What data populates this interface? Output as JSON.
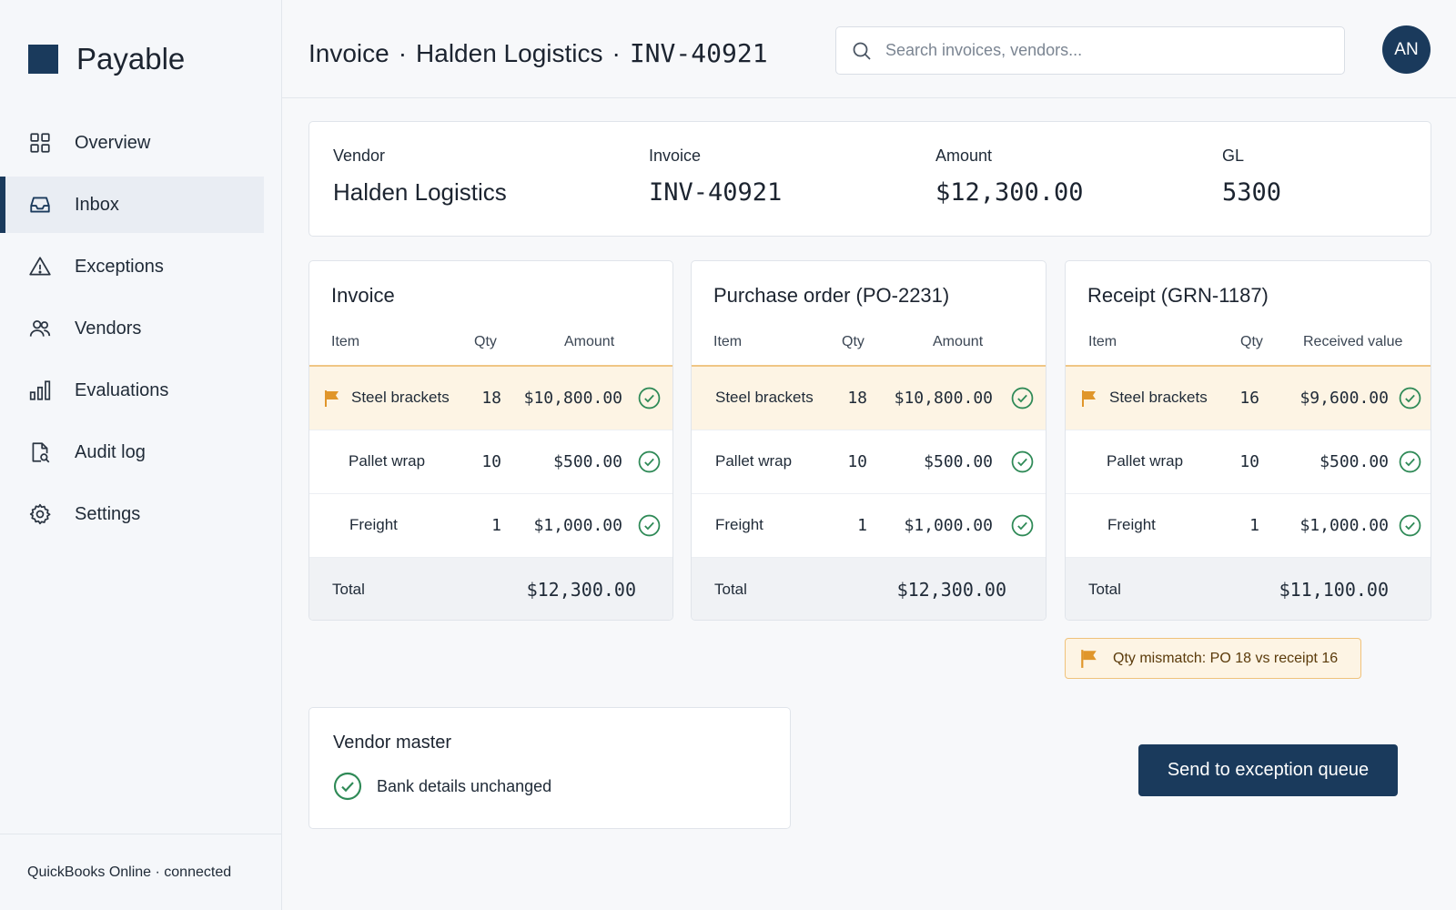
{
  "app": {
    "name": "Payable",
    "footer_status": "QuickBooks Online · connected"
  },
  "sidebar": {
    "items": [
      {
        "label": "Overview",
        "icon": "grid-icon"
      },
      {
        "label": "Inbox",
        "icon": "inbox-icon",
        "active": true
      },
      {
        "label": "Exceptions",
        "icon": "warning-icon"
      },
      {
        "label": "Vendors",
        "icon": "users-icon"
      },
      {
        "label": "Evaluations",
        "icon": "bar-chart-icon"
      },
      {
        "label": "Audit log",
        "icon": "file-search-icon"
      },
      {
        "label": "Settings",
        "icon": "gear-icon"
      }
    ]
  },
  "header": {
    "title_prefix": "Invoice",
    "separator": "·",
    "vendor": "Halden Logistics",
    "invoice_id": "INV-40921",
    "search_placeholder": "Search invoices, vendors...",
    "avatar_initials": "AN"
  },
  "summary": {
    "vendor_label": "Vendor",
    "vendor_value": "Halden Logistics",
    "invoice_label": "Invoice",
    "invoice_value": "INV-40921",
    "amount_label": "Amount",
    "amount_value": "$12,300.00",
    "gl_label": "GL",
    "gl_value": "5300"
  },
  "cards": {
    "invoice": {
      "title": "Invoice",
      "col_item": "Item",
      "col_qty": "Qty",
      "col_amount": "Amount",
      "rows": [
        {
          "item": "Steel brackets",
          "qty": "18",
          "amount": "$10,800.00",
          "flagged": true
        },
        {
          "item": "Pallet wrap",
          "qty": "10",
          "amount": "$500.00"
        },
        {
          "item": "Freight",
          "qty": "1",
          "amount": "$1,000.00"
        }
      ],
      "total_label": "Total",
      "total_value": "$12,300.00"
    },
    "po": {
      "title": "Purchase order (PO-2231)",
      "col_item": "Item",
      "col_qty": "Qty",
      "col_amount": "Amount",
      "rows": [
        {
          "item": "Steel brackets",
          "qty": "18",
          "amount": "$10,800.00",
          "flagged": true
        },
        {
          "item": "Pallet wrap",
          "qty": "10",
          "amount": "$500.00"
        },
        {
          "item": "Freight",
          "qty": "1",
          "amount": "$1,000.00"
        }
      ],
      "total_label": "Total",
      "total_value": "$12,300.00"
    },
    "receipt": {
      "title": "Receipt (GRN-1187)",
      "col_item": "Item",
      "col_qty": "Qty",
      "col_amount": "Received value",
      "rows": [
        {
          "item": "Steel brackets",
          "qty": "16",
          "amount": "$9,600.00",
          "flagged": true
        },
        {
          "item": "Pallet wrap",
          "qty": "10",
          "amount": "$500.00"
        },
        {
          "item": "Freight",
          "qty": "1",
          "amount": "$1,000.00"
        }
      ],
      "total_label": "Total",
      "total_value": "$11,100.00"
    }
  },
  "mismatch_note": "Qty mismatch: PO 18 vs receipt 16",
  "vendor_master": {
    "title": "Vendor master",
    "status": "Bank details unchanged"
  },
  "actions": {
    "primary_label": "Send to exception queue"
  },
  "colors": {
    "brand": "#1a3a5c",
    "flag": "#e0962b",
    "flag_bg": "#fdf4e4",
    "check": "#2f8a57"
  }
}
